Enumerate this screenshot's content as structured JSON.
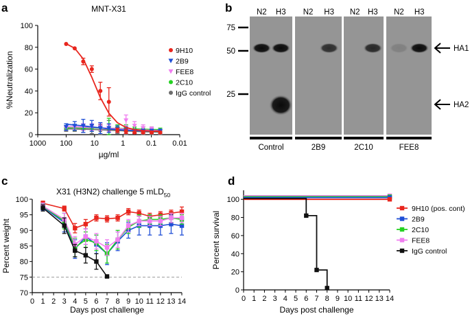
{
  "panels": {
    "a": "a",
    "b": "b",
    "c": "c",
    "d": "d"
  },
  "chart_data": [
    {
      "panel": "a",
      "type": "line",
      "title": "MNT-X31",
      "xlabel": "µg/ml",
      "ylabel": "%Neutralization",
      "x_scale": "log",
      "x_reversed": true,
      "xlim": [
        1000,
        0.01
      ],
      "x_ticks": [
        "1000",
        "100",
        "10",
        "1",
        "0.1",
        "0.01"
      ],
      "ylim": [
        0,
        100
      ],
      "y_ticks": [
        "0",
        "20",
        "40",
        "60",
        "80",
        "100"
      ],
      "legend_position": "right",
      "x": [
        100,
        50,
        25,
        12.5,
        6.25,
        3.125,
        1.5625,
        0.78,
        0.39,
        0.195,
        0.0977,
        0.0488
      ],
      "series": [
        {
          "name": "9H10",
          "color": "#e8261e",
          "marker": "circle",
          "values": [
            83,
            79,
            67,
            60,
            40,
            30,
            4,
            3,
            2,
            2,
            2,
            2
          ],
          "errors": [
            0,
            0,
            3,
            3,
            8,
            13,
            2,
            2,
            1,
            1,
            1,
            1
          ],
          "fit": [
            83.2,
            79.1,
            69.3,
            52.6,
            33.9,
            19.6,
            10.9,
            6.6,
            4.6,
            3.7,
            3.3,
            3.1
          ]
        },
        {
          "name": "2B9",
          "color": "#1f4fd6",
          "marker": "triangle-down",
          "values": [
            7,
            8,
            8,
            8,
            6,
            6,
            5,
            4,
            3,
            3,
            3,
            3
          ],
          "errors": [
            3,
            4,
            6,
            5,
            5,
            4,
            3,
            3,
            2,
            2,
            2,
            2
          ],
          "fit": [
            9.5,
            8.8,
            8.0,
            7.1,
            6.2,
            5.3,
            4.6,
            4.1,
            3.7,
            3.5,
            3.4,
            3.3
          ]
        },
        {
          "name": "FEE8",
          "color": "#f07ef0",
          "marker": "triangle-down",
          "values": [
            6,
            7,
            7,
            7,
            7,
            6,
            5,
            13,
            8,
            6,
            5,
            3
          ],
          "errors": [
            2,
            2,
            3,
            3,
            3,
            3,
            3,
            5,
            4,
            3,
            2,
            2
          ],
          "fit": [
            7.3,
            7.1,
            6.9,
            6.6,
            6.3,
            5.9,
            5.5,
            5.1,
            4.6,
            4.2,
            3.9,
            3.6
          ]
        },
        {
          "name": "2C10",
          "color": "#25d122",
          "marker": "circle",
          "values": [
            6,
            6,
            6,
            6,
            7,
            6,
            6,
            6,
            5,
            5,
            5,
            4
          ],
          "errors": [
            2,
            2,
            2,
            3,
            3,
            9,
            3,
            3,
            2,
            2,
            2,
            2
          ],
          "fit": [
            6.5,
            6.4,
            6.3,
            6.2,
            6.1,
            5.9,
            5.7,
            5.5,
            5.2,
            4.9,
            4.7,
            4.5
          ]
        },
        {
          "name": "IgG control",
          "color": "#6d6d6d",
          "marker": "circle",
          "values": [
            5,
            5,
            5,
            5,
            4,
            4,
            4,
            3,
            3,
            2,
            2,
            2
          ],
          "errors": [
            2,
            2,
            3,
            4,
            5,
            9,
            3,
            3,
            2,
            2,
            2,
            2
          ],
          "fit": [
            5.4,
            5.2,
            5.0,
            4.8,
            4.5,
            4.2,
            3.8,
            3.4,
            3.0,
            2.7,
            2.5,
            2.3
          ]
        }
      ]
    },
    {
      "panel": "b",
      "type": "western_blot",
      "mw_markers": [
        "75",
        "50",
        "25"
      ],
      "lane_labels": [
        "N2",
        "H3"
      ],
      "groups": [
        "Control",
        "2B9",
        "2C10",
        "FEE8"
      ],
      "annotations": [
        "HA1",
        "HA2"
      ],
      "bands": [
        {
          "group": "Control",
          "lane": "N2",
          "band": "HA1",
          "intensity": 1.0
        },
        {
          "group": "Control",
          "lane": "H3",
          "band": "HA1",
          "intensity": 1.0
        },
        {
          "group": "Control",
          "lane": "H3",
          "band": "HA2",
          "intensity": 1.0
        },
        {
          "group": "2B9",
          "lane": "H3",
          "band": "HA1",
          "intensity": 0.75
        },
        {
          "group": "2C10",
          "lane": "H3",
          "band": "HA1",
          "intensity": 0.8
        },
        {
          "group": "FEE8",
          "lane": "N2",
          "band": "HA1",
          "intensity": 0.15
        },
        {
          "group": "FEE8",
          "lane": "H3",
          "band": "HA1",
          "intensity": 1.0
        }
      ]
    },
    {
      "panel": "c",
      "type": "line",
      "title": "X31 (H3N2) challenge 5 mLD",
      "title_sub": "50",
      "xlabel": "Days post challenge",
      "ylabel": "Percent weight",
      "xlim": [
        0,
        14
      ],
      "ylim": [
        70,
        100
      ],
      "y_ticks": [
        "70",
        "75",
        "80",
        "85",
        "90",
        "95",
        "100"
      ],
      "x_ticks": [
        "0",
        "1",
        "2",
        "3",
        "4",
        "5",
        "6",
        "7",
        "8",
        "9",
        "10",
        "11",
        "12",
        "13",
        "14"
      ],
      "reference_line": 75,
      "x": [
        1,
        3,
        4,
        5,
        6,
        7,
        8,
        9,
        10,
        11,
        12,
        13,
        14
      ],
      "series": [
        {
          "name": "9H10",
          "color": "#e8261e",
          "values": [
            98.7,
            97,
            90.7,
            92,
            94,
            93.7,
            94,
            96,
            95.5,
            94.5,
            95,
            95.5,
            96
          ],
          "errors": [
            0.7,
            0.8,
            1.5,
            1.5,
            1.0,
            1.0,
            1.0,
            1.0,
            1.0,
            1.0,
            1.0,
            1.0,
            1.5
          ]
        },
        {
          "name": "2B9",
          "color": "#1f4fd6",
          "values": [
            97.5,
            92.5,
            84,
            88,
            85.5,
            82.5,
            86.5,
            90,
            91.5,
            91.5,
            91.5,
            92,
            91.5
          ],
          "errors": [
            1.0,
            3.0,
            3.0,
            2.5,
            3.0,
            3.5,
            3.0,
            2.5,
            3.0,
            3.0,
            3.0,
            3.0,
            3.0
          ]
        },
        {
          "name": "2C10",
          "color": "#25d122",
          "values": [
            97.7,
            93,
            84.5,
            87,
            86,
            82.5,
            87,
            91,
            93,
            93.5,
            93.5,
            94,
            93.5
          ],
          "errors": [
            1.0,
            2.5,
            3.0,
            2.5,
            2.5,
            3.0,
            3.0,
            2.0,
            2.0,
            1.5,
            1.5,
            1.5,
            1.5
          ]
        },
        {
          "name": "FEE8",
          "color": "#f07ef0",
          "values": [
            97.8,
            93.5,
            85.5,
            88,
            86.5,
            84.5,
            87,
            91.5,
            93,
            93,
            93,
            94,
            94
          ],
          "errors": [
            1.0,
            2.0,
            2.5,
            2.5,
            2.5,
            2.5,
            2.5,
            2.0,
            1.5,
            1.5,
            1.5,
            1.5,
            1.5
          ]
        },
        {
          "name": "IgG control",
          "color": "#111111",
          "x": [
            1,
            3,
            4,
            5,
            6,
            7
          ],
          "values": [
            97.2,
            91.5,
            83.5,
            82,
            80,
            75.2
          ],
          "errors": [
            1.0,
            2.5,
            2.0,
            2.5,
            2.5,
            0.5
          ]
        }
      ]
    },
    {
      "panel": "d",
      "type": "line",
      "subtype": "survival-step",
      "xlabel": "Days post challenge",
      "ylabel": "Percent survival",
      "xlim": [
        0,
        14
      ],
      "ylim": [
        0,
        110
      ],
      "y_ticks": [
        "0",
        "20",
        "40",
        "60",
        "80",
        "100"
      ],
      "x_ticks": [
        "0",
        "1",
        "2",
        "3",
        "4",
        "5",
        "6",
        "7",
        "8",
        "9",
        "10",
        "11",
        "12",
        "13",
        "14"
      ],
      "legend_position": "right",
      "series": [
        {
          "name": "9H10 (pos. cont)",
          "color": "#e8261e",
          "x": [
            0,
            14
          ],
          "values": [
            100,
            100
          ]
        },
        {
          "name": "2B9",
          "color": "#1f4fd6",
          "x": [
            0,
            14
          ],
          "values": [
            102,
            102
          ]
        },
        {
          "name": "2C10",
          "color": "#25d122",
          "x": [
            0,
            14
          ],
          "values": [
            103,
            103
          ]
        },
        {
          "name": "FEE8",
          "color": "#f07ef0",
          "x": [
            0,
            14
          ],
          "values": [
            104,
            104
          ]
        },
        {
          "name": "IgG control",
          "color": "#111111",
          "x": [
            0,
            6,
            6,
            7,
            7,
            8,
            8
          ],
          "values": [
            101,
            101,
            82,
            82,
            22,
            22,
            2
          ],
          "points_x": [
            6,
            7,
            8
          ],
          "points_y": [
            82,
            22,
            2
          ]
        }
      ]
    }
  ]
}
